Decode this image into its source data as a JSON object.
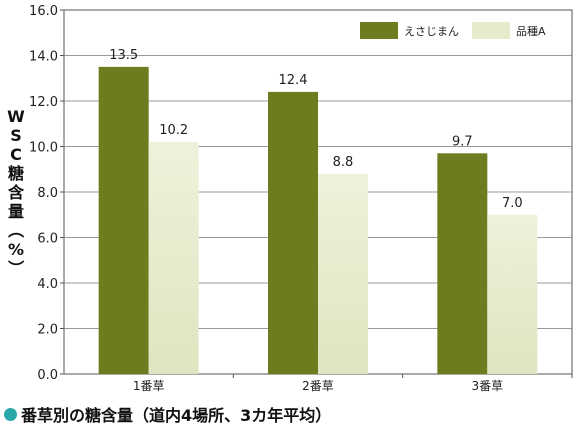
{
  "chart_data": {
    "type": "bar",
    "ylabel": "WSC糖含量（%）",
    "ylim": [
      0,
      16
    ],
    "yticks": [
      "0.0",
      "2.0",
      "4.0",
      "6.0",
      "8.0",
      "10.0",
      "12.0",
      "14.0",
      "16.0"
    ],
    "categories": [
      "1番草",
      "2番草",
      "3番草"
    ],
    "series": [
      {
        "name": "えさじまん",
        "values": [
          13.5,
          12.4,
          9.7
        ],
        "color": "#6b7d1e",
        "labels": [
          "13.5",
          "12.4",
          "9.7"
        ]
      },
      {
        "name": "品種A",
        "values": [
          10.2,
          8.8,
          7.0
        ],
        "color": "#e7ecd0",
        "labels": [
          "10.2",
          "8.8",
          "7.0"
        ]
      }
    ],
    "grid": true,
    "legend": "top-right"
  },
  "caption": {
    "text": "番草別の糖含量（道内4場所、3カ年平均）",
    "bullet_color": "#2aa7a9"
  }
}
